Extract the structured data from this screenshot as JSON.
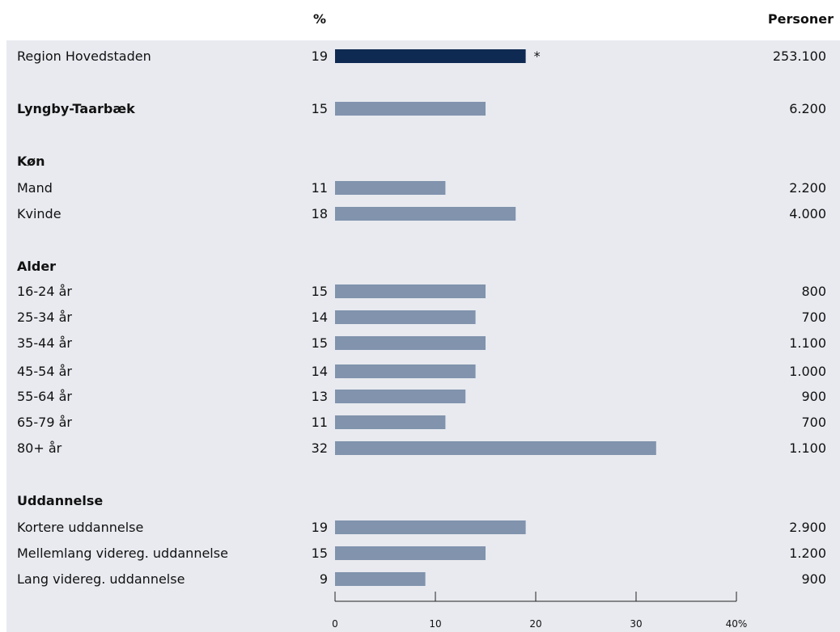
{
  "header": {
    "percent_label": "%",
    "persons_label": "Personer"
  },
  "colors": {
    "panel_bg": "#e8eaef",
    "region_bar": "#0f2a52",
    "bar": "#8193ad",
    "axis": "#222222"
  },
  "chart_data": {
    "type": "bar",
    "orientation": "horizontal",
    "xlim": [
      0,
      40
    ],
    "x_ticks": [
      "0",
      "10",
      "20",
      "30",
      "40%"
    ],
    "rows": [
      {
        "kind": "bar",
        "label": "Region Hovedstaden",
        "value": 19,
        "persons": "253.100",
        "highlight": true,
        "marker": "*"
      },
      {
        "kind": "bar",
        "label": "Lyngby-Taarbæk",
        "value": 15,
        "persons": "6.200",
        "bold": true
      },
      {
        "kind": "header",
        "label": "Køn"
      },
      {
        "kind": "bar",
        "label": "Mand",
        "value": 11,
        "persons": "2.200"
      },
      {
        "kind": "bar",
        "label": "Kvinde",
        "value": 18,
        "persons": "4.000"
      },
      {
        "kind": "header",
        "label": "Alder"
      },
      {
        "kind": "bar",
        "label": "16-24 år",
        "value": 15,
        "persons": "800"
      },
      {
        "kind": "bar",
        "label": "25-34 år",
        "value": 14,
        "persons": "700"
      },
      {
        "kind": "bar",
        "label": "35-44 år",
        "value": 15,
        "persons": "1.100"
      },
      {
        "kind": "bar",
        "label": "45-54 år",
        "value": 14,
        "persons": "1.000"
      },
      {
        "kind": "bar",
        "label": "55-64 år",
        "value": 13,
        "persons": "900"
      },
      {
        "kind": "bar",
        "label": "65-79 år",
        "value": 11,
        "persons": "700"
      },
      {
        "kind": "bar",
        "label": "80+ år",
        "value": 32,
        "persons": "1.100"
      },
      {
        "kind": "header",
        "label": "Uddannelse"
      },
      {
        "kind": "bar",
        "label": "Kortere uddannelse",
        "value": 19,
        "persons": "2.900"
      },
      {
        "kind": "bar",
        "label": "Mellemlang videreg. uddannelse",
        "value": 15,
        "persons": "1.200"
      },
      {
        "kind": "bar",
        "label": "Lang videreg. uddannelse",
        "value": 9,
        "persons": "900"
      }
    ]
  }
}
